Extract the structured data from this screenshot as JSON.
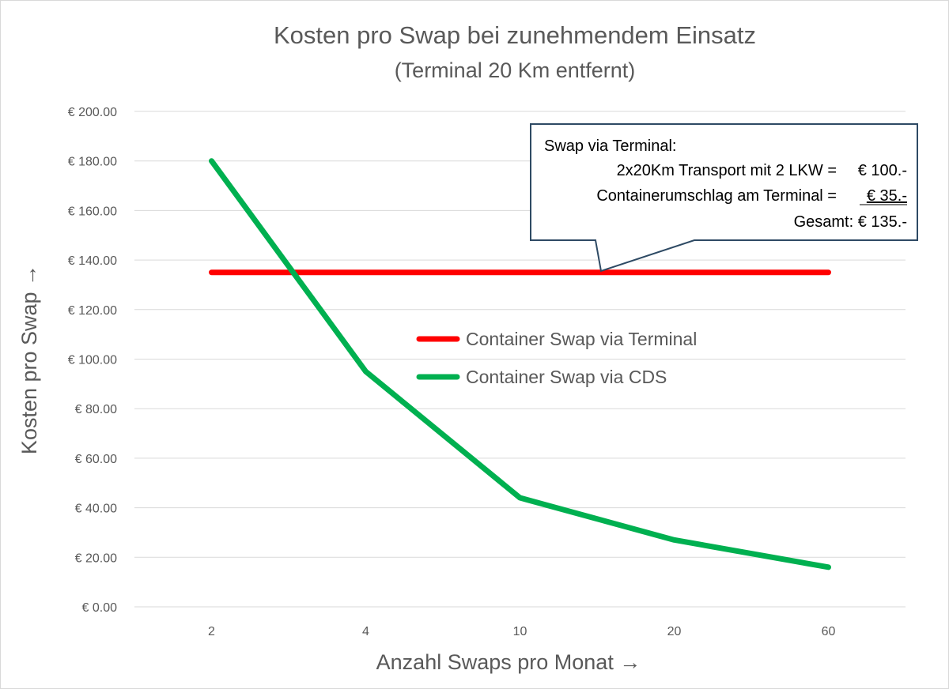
{
  "chart_data": {
    "type": "line",
    "title": "Kosten pro Swap bei zunehmendem Einsatz",
    "subtitle": "(Terminal 20 Km entfernt)",
    "xlabel": "Anzahl Swaps pro Monat →",
    "ylabel": "Kosten pro Swap →",
    "categories": [
      "2",
      "4",
      "10",
      "20",
      "60"
    ],
    "ylim": [
      0,
      200
    ],
    "yticks": [
      0,
      20,
      40,
      60,
      80,
      100,
      120,
      140,
      160,
      180,
      200
    ],
    "ytick_labels": [
      "€ 0.00",
      "€ 20.00",
      "€ 40.00",
      "€ 60.00",
      "€ 80.00",
      "€ 100.00",
      "€ 120.00",
      "€ 140.00",
      "€ 160.00",
      "€ 180.00",
      "€ 200.00"
    ],
    "grid": true,
    "legend_placement": "center",
    "series": [
      {
        "name": "Container Swap via Terminal",
        "color": "#ff0000",
        "values": [
          135,
          135,
          135,
          135,
          135
        ]
      },
      {
        "name": "Container Swap via CDS",
        "color": "#00b050",
        "values": [
          180,
          95,
          44,
          27,
          16
        ]
      }
    ],
    "annotation": {
      "heading": "Swap via Terminal:",
      "line1": "2x20Km Transport mit 2 LKW =",
      "value1": "€ 100.-",
      "line2": "Containerumschlag am Terminal =",
      "value2": "€ 35.-",
      "total": "Gesamt: € 135.-"
    }
  }
}
